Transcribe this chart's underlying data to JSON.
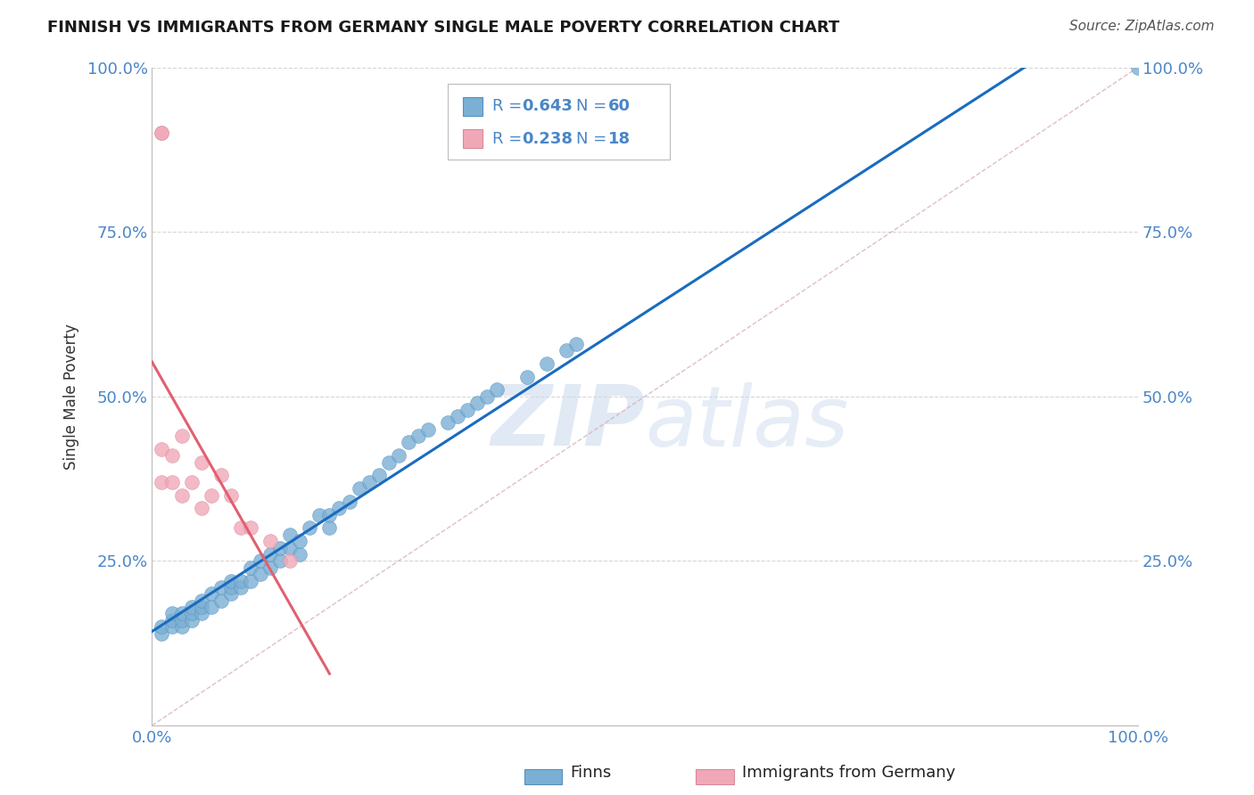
{
  "title": "FINNISH VS IMMIGRANTS FROM GERMANY SINGLE MALE POVERTY CORRELATION CHART",
  "source": "Source: ZipAtlas.com",
  "ylabel": "Single Male Poverty",
  "watermark": "ZIPatlas",
  "finns_color": "#7bafd4",
  "immigrants_color": "#f0a8b8",
  "blue_line_color": "#1a6bbf",
  "pink_line_color": "#e06070",
  "dashed_line_color": "#d4b0b8",
  "legend_blue_color": "#7bafd4",
  "legend_pink_color": "#f0a8b8",
  "R_finns": "0.643",
  "N_finns": "60",
  "R_imm": "0.238",
  "N_imm": "18",
  "finns_x": [
    0.01,
    0.01,
    0.02,
    0.02,
    0.02,
    0.03,
    0.03,
    0.03,
    0.04,
    0.04,
    0.04,
    0.05,
    0.05,
    0.05,
    0.06,
    0.06,
    0.07,
    0.07,
    0.08,
    0.08,
    0.08,
    0.09,
    0.09,
    0.1,
    0.1,
    0.11,
    0.11,
    0.12,
    0.12,
    0.13,
    0.13,
    0.14,
    0.14,
    0.15,
    0.15,
    0.16,
    0.17,
    0.18,
    0.18,
    0.19,
    0.2,
    0.21,
    0.22,
    0.23,
    0.24,
    0.25,
    0.26,
    0.27,
    0.28,
    0.3,
    0.31,
    0.32,
    0.33,
    0.34,
    0.35,
    0.38,
    0.4,
    0.42,
    0.43,
    1.0
  ],
  "finns_y": [
    0.14,
    0.15,
    0.15,
    0.16,
    0.17,
    0.15,
    0.16,
    0.17,
    0.16,
    0.17,
    0.18,
    0.17,
    0.18,
    0.19,
    0.18,
    0.2,
    0.19,
    0.21,
    0.2,
    0.21,
    0.22,
    0.21,
    0.22,
    0.22,
    0.24,
    0.23,
    0.25,
    0.24,
    0.26,
    0.25,
    0.27,
    0.27,
    0.29,
    0.26,
    0.28,
    0.3,
    0.32,
    0.3,
    0.32,
    0.33,
    0.34,
    0.36,
    0.37,
    0.38,
    0.4,
    0.41,
    0.43,
    0.44,
    0.45,
    0.46,
    0.47,
    0.48,
    0.49,
    0.5,
    0.51,
    0.53,
    0.55,
    0.57,
    0.58,
    1.0
  ],
  "immigrants_x": [
    0.01,
    0.01,
    0.01,
    0.01,
    0.02,
    0.02,
    0.03,
    0.03,
    0.04,
    0.05,
    0.05,
    0.06,
    0.07,
    0.08,
    0.09,
    0.1,
    0.12,
    0.14
  ],
  "immigrants_y": [
    0.9,
    0.9,
    0.42,
    0.37,
    0.41,
    0.37,
    0.44,
    0.35,
    0.37,
    0.4,
    0.33,
    0.35,
    0.38,
    0.35,
    0.3,
    0.3,
    0.28,
    0.25
  ],
  "xlim": [
    0.0,
    1.0
  ],
  "ylim": [
    0.0,
    1.0
  ],
  "xtick_positions": [
    0.0,
    0.25,
    0.5,
    0.75,
    1.0
  ],
  "xtick_labels": [
    "0.0%",
    "",
    "",
    "",
    "100.0%"
  ],
  "ytick_positions": [
    0.0,
    0.25,
    0.5,
    0.75,
    1.0
  ],
  "ytick_labels": [
    "",
    "25.0%",
    "50.0%",
    "75.0%",
    "100.0%"
  ],
  "tick_color": "#4a86c8",
  "axis_label_color": "#333333",
  "title_fontsize": 13,
  "tick_fontsize": 13,
  "legend_R_color": "#4a86c8",
  "legend_N_color": "#4a86c8"
}
